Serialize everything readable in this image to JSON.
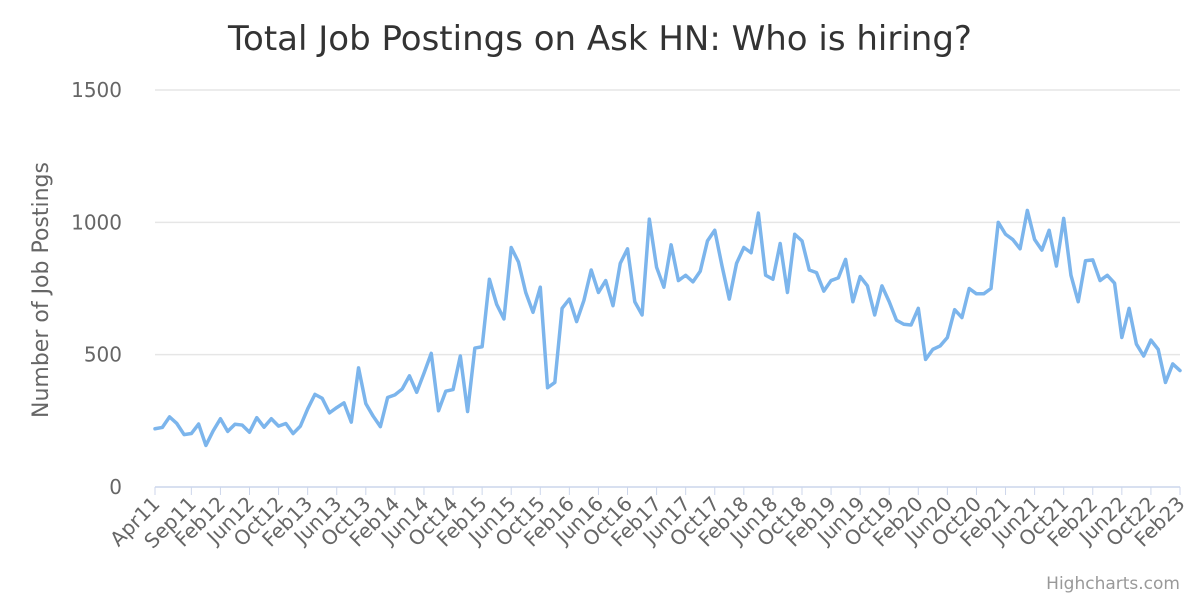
{
  "chart_data": {
    "type": "line",
    "title": "Total Job Postings on Ask HN: Who is hiring?",
    "xlabel": "",
    "ylabel": "Number of Job Postings",
    "ylim": [
      0,
      1500
    ],
    "yticks": [
      0,
      500,
      1000,
      1500
    ],
    "grid": true,
    "legend": "none",
    "line_color": "#7cb5ec",
    "x_tick_labels": [
      "Apr11",
      "Sep11",
      "Feb12",
      "Jun12",
      "Oct12",
      "Feb13",
      "Jun13",
      "Oct13",
      "Feb14",
      "Jun14",
      "Oct14",
      "Feb15",
      "Jun15",
      "Oct15",
      "Feb16",
      "Jun16",
      "Oct16",
      "Feb17",
      "Jun17",
      "Oct17",
      "Feb18",
      "Jun18",
      "Oct18",
      "Feb19",
      "Jun19",
      "Oct19",
      "Feb20",
      "Jun20",
      "Oct20",
      "Feb21",
      "Jun21",
      "Oct21",
      "Feb22",
      "Jun22",
      "Oct22",
      "Feb23"
    ],
    "x_start": "2011-04",
    "series": [
      {
        "values": [
          220,
          225,
          265,
          240,
          198,
          202,
          238,
          157,
          212,
          258,
          210,
          237,
          234,
          207,
          262,
          226,
          258,
          230,
          240,
          202,
          230,
          295,
          350,
          335,
          280,
          300,
          318,
          245,
          450,
          315,
          268,
          228,
          338,
          348,
          370,
          420,
          358,
          430,
          505,
          288,
          362,
          368,
          495,
          285,
          525,
          530,
          785,
          690,
          635,
          905,
          850,
          735,
          660,
          755,
          375,
          395,
          675,
          710,
          625,
          705,
          820,
          735,
          780,
          685,
          845,
          900,
          700,
          650,
          1012,
          830,
          755,
          915,
          780,
          800,
          775,
          815,
          930,
          970,
          835,
          710,
          845,
          905,
          885,
          1035,
          800,
          785,
          920,
          735,
          955,
          930,
          820,
          810,
          740,
          780,
          790,
          860,
          700,
          795,
          760,
          650,
          760,
          700,
          630,
          615,
          612,
          675,
          482,
          520,
          533,
          565,
          670,
          640,
          750,
          730,
          730,
          750,
          1000,
          955,
          935,
          900,
          1045,
          935,
          895,
          970,
          835,
          1015,
          800,
          700,
          855,
          858,
          780,
          800,
          770,
          565,
          675,
          540,
          495,
          555,
          520,
          395,
          465,
          440
        ]
      }
    ]
  },
  "credits": "Highcharts.com"
}
